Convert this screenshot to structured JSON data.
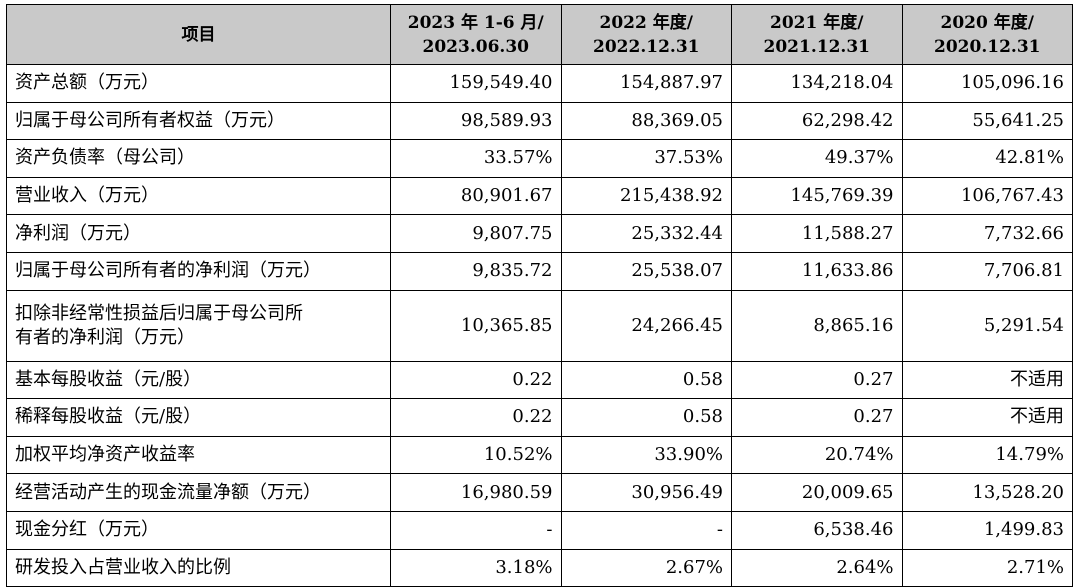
{
  "header": {
    "item": "项目",
    "periods": [
      {
        "line1": "2023 年 1-6 月/",
        "line2": "2023.06.30"
      },
      {
        "line1": "2022 年度/",
        "line2": "2022.12.31"
      },
      {
        "line1": "2021 年度/",
        "line2": "2021.12.31"
      },
      {
        "line1": "2020 年度/",
        "line2": "2020.12.31"
      }
    ]
  },
  "rows": [
    {
      "label": "资产总额（万元）",
      "values": [
        "159,549.40",
        "154,887.97",
        "134,218.04",
        "105,096.16"
      ]
    },
    {
      "label": "归属于母公司所有者权益（万元）",
      "values": [
        "98,589.93",
        "88,369.05",
        "62,298.42",
        "55,641.25"
      ]
    },
    {
      "label": "资产负债率（母公司）",
      "values": [
        "33.57%",
        "37.53%",
        "49.37%",
        "42.81%"
      ]
    },
    {
      "label": "营业收入（万元）",
      "values": [
        "80,901.67",
        "215,438.92",
        "145,769.39",
        "106,767.43"
      ]
    },
    {
      "label": "净利润（万元）",
      "values": [
        "9,807.75",
        "25,332.44",
        "11,588.27",
        "7,732.66"
      ]
    },
    {
      "label": "归属于母公司所有者的净利润（万元）",
      "values": [
        "9,835.72",
        "25,538.07",
        "11,633.86",
        "7,706.81"
      ]
    },
    {
      "label_line1": "扣除非经常性损益后归属于母公司所",
      "label_line2": "有者的净利润（万元）",
      "values": [
        "10,365.85",
        "24,266.45",
        "8,865.16",
        "5,291.54"
      ]
    },
    {
      "label": "基本每股收益（元/股）",
      "values": [
        "0.22",
        "0.58",
        "0.27",
        "不适用"
      ]
    },
    {
      "label": "稀释每股收益（元/股）",
      "values": [
        "0.22",
        "0.58",
        "0.27",
        "不适用"
      ]
    },
    {
      "label": "加权平均净资产收益率",
      "values": [
        "10.52%",
        "33.90%",
        "20.74%",
        "14.79%"
      ]
    },
    {
      "label": "经营活动产生的现金流量净额（万元）",
      "values": [
        "16,980.59",
        "30,956.49",
        "20,009.65",
        "13,528.20"
      ]
    },
    {
      "label": "现金分红（万元）",
      "values": [
        "-",
        "-",
        "6,538.46",
        "1,499.83"
      ]
    },
    {
      "label": "研发投入占营业收入的比例",
      "values": [
        "3.18%",
        "2.67%",
        "2.64%",
        "2.71%"
      ]
    }
  ]
}
